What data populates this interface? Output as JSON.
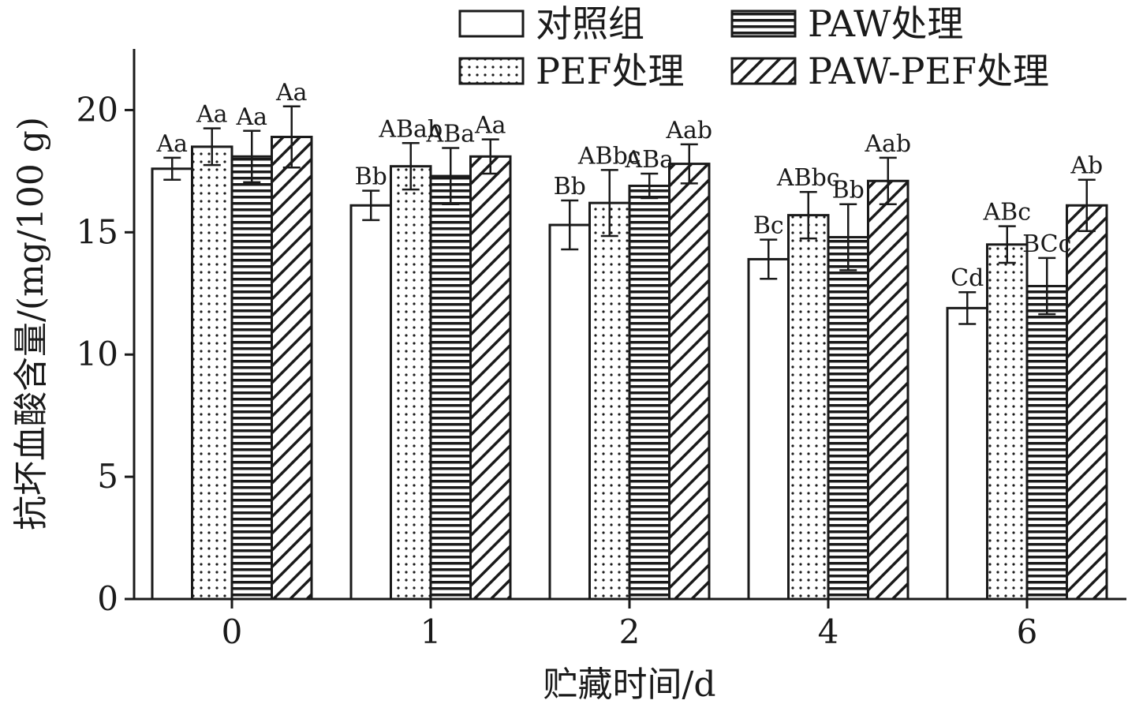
{
  "chart_data": {
    "type": "bar",
    "xlabel": "贮藏时间/d",
    "ylabel": "抗坏血酸含量/(mg/100 g)",
    "ylim": [
      0,
      22.5
    ],
    "yticks": [
      "0",
      "5",
      "10",
      "15",
      "20"
    ],
    "categories": [
      "0",
      "1",
      "2",
      "4",
      "6"
    ],
    "legend_placement": "top-right",
    "grid": false,
    "series": [
      {
        "name": "对照组",
        "pattern": "plain",
        "values": [
          17.6,
          16.1,
          15.3,
          13.9,
          11.9
        ],
        "errors": [
          0.45,
          0.6,
          1.0,
          0.8,
          0.65
        ],
        "labels": [
          "Aa",
          "Bb",
          "Bb",
          "Bc",
          "Cd"
        ]
      },
      {
        "name": "PEF处理",
        "pattern": "dots",
        "values": [
          18.5,
          17.7,
          16.2,
          15.7,
          14.5
        ],
        "errors": [
          0.75,
          0.95,
          1.35,
          0.95,
          0.75
        ],
        "labels": [
          "Aa",
          "ABab",
          "ABbc",
          "ABbc",
          "ABc"
        ]
      },
      {
        "name": "PAW处理",
        "pattern": "horizontal",
        "values": [
          18.1,
          17.3,
          16.9,
          14.8,
          12.8
        ],
        "errors": [
          1.05,
          1.15,
          0.5,
          1.35,
          1.15
        ],
        "labels": [
          "Aa",
          "ABa",
          "ABa",
          "Bb",
          "BCc"
        ]
      },
      {
        "name": "PAW-PEF处理",
        "pattern": "diagonal",
        "values": [
          18.9,
          18.1,
          17.8,
          17.1,
          16.1
        ],
        "errors": [
          1.25,
          0.7,
          0.8,
          0.95,
          1.05
        ],
        "labels": [
          "Aa",
          "Aa",
          "Aab",
          "Aab",
          "Ab"
        ]
      }
    ]
  }
}
